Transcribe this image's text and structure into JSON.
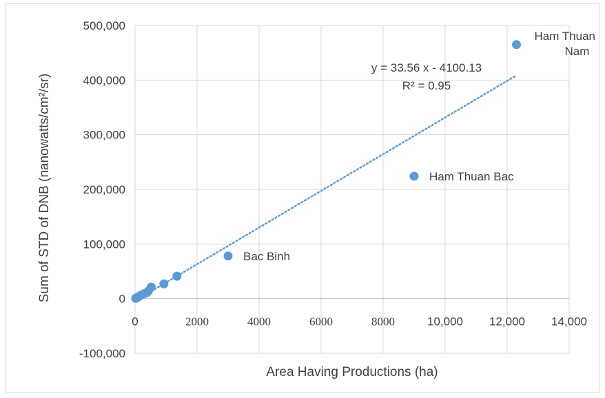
{
  "chart_data": {
    "type": "scatter",
    "title": "",
    "xlabel": "Area Having Productions (ha)",
    "ylabel": "Sum of STD of DNB (nanowatts/cm²/sr)",
    "xlim": [
      0,
      14000
    ],
    "ylim": [
      -100000,
      500000
    ],
    "x_ticks": [
      {
        "value": 0,
        "label": "0"
      },
      {
        "value": 2000,
        "label": "2000"
      },
      {
        "value": 4000,
        "label": "4000"
      },
      {
        "value": 6000,
        "label": "6000"
      },
      {
        "value": 8000,
        "label": "8000"
      },
      {
        "value": 10000,
        "label": "10,000"
      },
      {
        "value": 12000,
        "label": "12,000"
      },
      {
        "value": 14000,
        "label": "14,000"
      }
    ],
    "y_ticks": [
      {
        "value": -100000,
        "label": "-100,000"
      },
      {
        "value": 0,
        "label": "0"
      },
      {
        "value": 100000,
        "label": "100,000"
      },
      {
        "value": 200000,
        "label": "200,000"
      },
      {
        "value": 300000,
        "label": "300,000"
      },
      {
        "value": 400000,
        "label": "400,000"
      },
      {
        "value": 500000,
        "label": "500,000"
      }
    ],
    "grid": true,
    "color": "#5b9bd5",
    "points": [
      {
        "x": 20,
        "y": 500,
        "label": ""
      },
      {
        "x": 60,
        "y": 1500,
        "label": ""
      },
      {
        "x": 100,
        "y": 3000,
        "label": ""
      },
      {
        "x": 150,
        "y": 5000,
        "label": ""
      },
      {
        "x": 220,
        "y": 7000,
        "label": ""
      },
      {
        "x": 300,
        "y": 9000,
        "label": ""
      },
      {
        "x": 380,
        "y": 11000,
        "label": ""
      },
      {
        "x": 430,
        "y": 14000,
        "label": ""
      },
      {
        "x": 520,
        "y": 21000,
        "label": ""
      },
      {
        "x": 930,
        "y": 27000,
        "label": ""
      },
      {
        "x": 1350,
        "y": 41000,
        "label": ""
      },
      {
        "x": 3000,
        "y": 78000,
        "label": "Bac Binh"
      },
      {
        "x": 9000,
        "y": 224000,
        "label": "Ham Thuan Bac"
      },
      {
        "x": 12300,
        "y": 465000,
        "label": "Ham Thuan\nNam"
      }
    ],
    "trendline": {
      "slope": 33.56,
      "intercept": -4100.13,
      "x_range": [
        0,
        12300
      ],
      "equation": "y = 33.56 x - 4100.13",
      "r_squared": "R² = 0.95"
    }
  }
}
